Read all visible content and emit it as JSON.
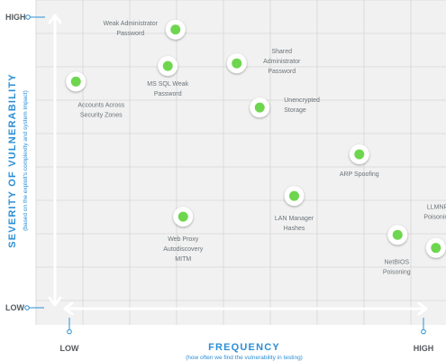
{
  "chart_data": {
    "type": "scatter",
    "x_axis": {
      "title": "FREQUENCY",
      "subtitle": "(how often we find the vulnerability in testing)",
      "low_label": "LOW",
      "high_label": "HIGH",
      "range": [
        0,
        10
      ]
    },
    "y_axis": {
      "title": "SEVERITY OF VULNERABILITY",
      "subtitle": "(based on the exploit's complexity and system impact)",
      "low_label": "LOW",
      "high_label": "HIGH",
      "range": [
        0,
        10
      ]
    },
    "grid": true,
    "points": [
      {
        "label": [
          "Weak Administrator",
          "Password"
        ],
        "x": 3.1,
        "y": 9.8
      },
      {
        "label": [
          "Accounts Across",
          "Security Zones"
        ],
        "x": 0.5,
        "y": 7.8
      },
      {
        "label": [
          "MS SQL Weak",
          "Password"
        ],
        "x": 2.9,
        "y": 8.4
      },
      {
        "label": [
          "Shared",
          "Administrator",
          "Password"
        ],
        "x": 4.7,
        "y": 8.5
      },
      {
        "label": [
          "Unencrypted",
          "Storage"
        ],
        "x": 5.3,
        "y": 6.8
      },
      {
        "label": [
          "ARP Spoofing"
        ],
        "x": 7.9,
        "y": 5.0
      },
      {
        "label": [
          "LAN Manager",
          "Hashes"
        ],
        "x": 6.2,
        "y": 3.4
      },
      {
        "label": [
          "Web Proxy",
          "Autodiscovery",
          "MITM"
        ],
        "x": 3.3,
        "y": 2.6
      },
      {
        "label": [
          "NetBIOS",
          "Poisoning"
        ],
        "x": 8.9,
        "y": 1.9
      },
      {
        "label": [
          "LLMNR",
          "Poisoning"
        ],
        "x": 9.9,
        "y": 1.4
      }
    ],
    "colors": {
      "point": "#6ed64e",
      "accent": "#2b8fd6",
      "panel": "#f1f1f1",
      "grid": "#d6d6d6"
    }
  }
}
